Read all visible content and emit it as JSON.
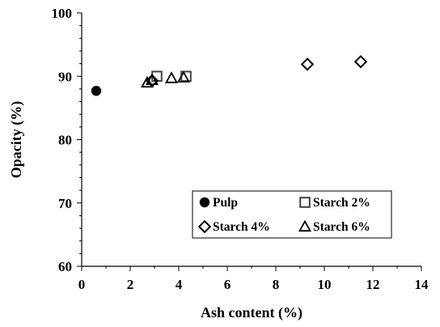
{
  "chart_data": {
    "type": "scatter",
    "title": "",
    "xlabel": "Ash content (%)",
    "ylabel": "Opacity (%)",
    "xlim": [
      0,
      14
    ],
    "ylim": [
      60,
      100
    ],
    "x_ticks": [
      "0",
      "2",
      "4",
      "6",
      "8",
      "10",
      "12",
      "14"
    ],
    "y_ticks": [
      "60",
      "70",
      "80",
      "90",
      "100"
    ],
    "grid": false,
    "legend_position": "bottom-right",
    "series": [
      {
        "name": "Pulp",
        "marker": "circle-filled",
        "points": [
          {
            "x": 0.6,
            "y": 87.7
          }
        ]
      },
      {
        "name": "Starch 2%",
        "marker": "square-open",
        "points": [
          {
            "x": 3.1,
            "y": 90.0
          },
          {
            "x": 4.3,
            "y": 90.0
          }
        ]
      },
      {
        "name": "Starch 4%",
        "marker": "diamond-open",
        "points": [
          {
            "x": 2.9,
            "y": 89.3
          },
          {
            "x": 9.3,
            "y": 91.9
          },
          {
            "x": 11.5,
            "y": 92.3
          }
        ]
      },
      {
        "name": "Starch 6%",
        "marker": "triangle-open",
        "points": [
          {
            "x": 2.7,
            "y": 89.0
          },
          {
            "x": 2.9,
            "y": 89.4
          },
          {
            "x": 3.7,
            "y": 89.7
          },
          {
            "x": 4.2,
            "y": 89.8
          }
        ]
      }
    ]
  }
}
